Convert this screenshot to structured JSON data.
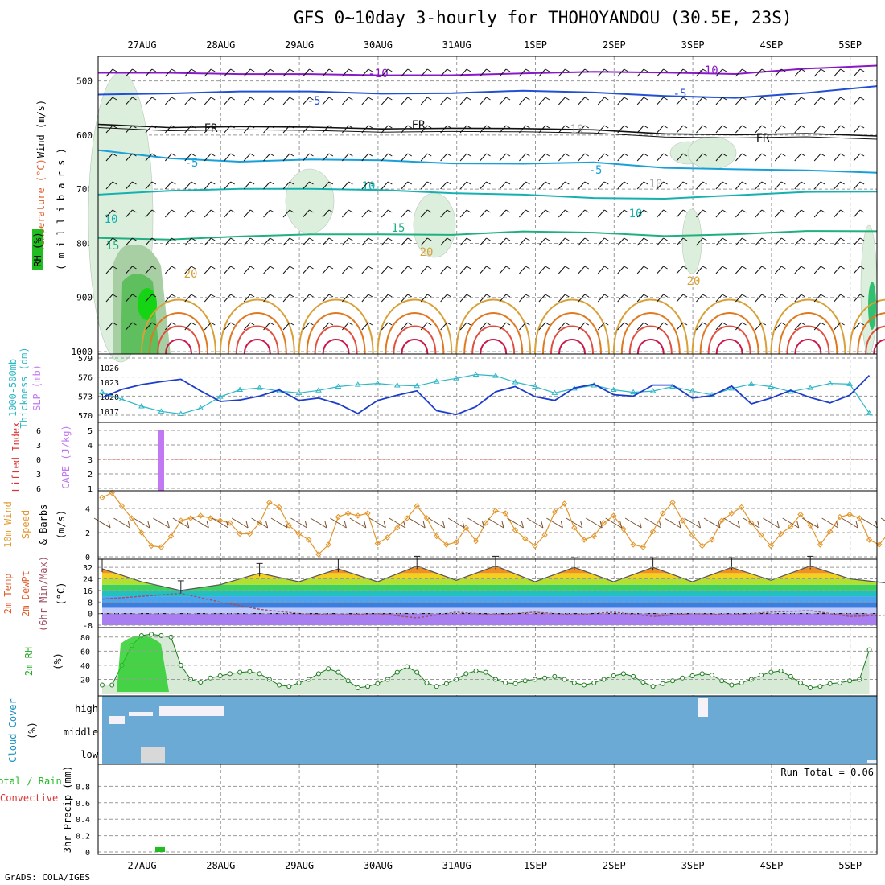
{
  "title": "GFS 0~10day 3-hourly for THOHOYANDOU (30.5E, 23S)",
  "credit": "GrADS: COLA/IGES",
  "colors": {
    "temperature": "#e06030",
    "rh": "#22aa22",
    "wind": "#000000",
    "thickness": "#2fb7c7",
    "slp": "#1c3ccc",
    "cape": "#c278f2",
    "lifted_index": "#dd3333",
    "wind10_speed": "#e3962c",
    "wind10_barb": "#7a5030",
    "cloud": "#6aaad4",
    "cloud_gap": "#f4f2f8",
    "precip_total": "#22bb22",
    "precip_conv": "#dd3333"
  },
  "x_axis": {
    "top_labels": [
      "27AUG",
      "28AUG",
      "29AUG",
      "30AUG",
      "31AUG",
      "1SEP",
      "2SEP",
      "3SEP",
      "4SEP",
      "5SEP"
    ],
    "bottom_labels": [
      "27AUG",
      "28AUG",
      "29AUG",
      "30AUG",
      "31AUG",
      "1SEP",
      "2SEP",
      "3SEP",
      "4SEP",
      "5SEP"
    ]
  },
  "panels": {
    "upper": {
      "y_labels": [
        "Wind (m/s)",
        "Temperature (°C)",
        "RH (%)",
        "( m i l l i b a r s )"
      ],
      "pressure_ticks": [
        "500",
        "600",
        "700",
        "800",
        "900",
        "1000"
      ],
      "contour_labels": [
        "-10",
        "-10",
        "-5",
        "-5",
        "FR",
        "FR",
        "FR",
        "-5",
        "-5",
        "10",
        "10",
        "10",
        "15",
        "15",
        "20",
        "20",
        "20",
        "10",
        "10"
      ]
    },
    "thick": {
      "y_labels": [
        "1000-500mb",
        "Thickness (dm)",
        "SLP (mb)"
      ],
      "left_ticks": [
        "579",
        "576",
        "573",
        "570"
      ],
      "right_ticks": [
        "1026",
        "1023",
        "1020",
        "1017"
      ]
    },
    "cape": {
      "y_labels": [
        "Lifted Index",
        "CAPE (J/kg)"
      ],
      "li_ticks": [
        "6",
        "3",
        "0",
        "3",
        "6"
      ],
      "cape_ticks": [
        "5",
        "4",
        "3",
        "2",
        "1"
      ]
    },
    "wind10": {
      "y_labels": [
        "10m Wind",
        "Speed",
        "& Barbs",
        "(m/s)"
      ],
      "ticks": [
        "4",
        "2",
        "0"
      ]
    },
    "temp2m": {
      "y_labels": [
        "2m Temp",
        "2m DewPt",
        "(6hr Min/Max)",
        "(°C)"
      ],
      "ticks": [
        "32",
        "24",
        "16",
        "8",
        "0",
        "-8"
      ]
    },
    "rh2m": {
      "y_labels": [
        "2m RH",
        "(%)"
      ],
      "ticks": [
        "80",
        "60",
        "40",
        "20"
      ]
    },
    "cloud": {
      "y_labels": [
        "Cloud Cover",
        "(%)"
      ],
      "levels": [
        "high",
        "middle",
        "low"
      ]
    },
    "precip": {
      "y_labels": [
        "Total / Rain",
        "Convective",
        "3hr Precip (mm)"
      ],
      "ticks": [
        "0.8",
        "0.6",
        "0.4",
        "0.2",
        "0"
      ],
      "run_total": "Run Total = 0.06"
    }
  },
  "chart_data": [
    {
      "type": "line",
      "name": "upper-air time section",
      "x": [
        "26AUG 12Z",
        "27AUG 00Z",
        "28AUG 00Z",
        "29AUG 00Z",
        "30AUG 00Z",
        "31AUG 00Z",
        "1SEP 00Z",
        "2SEP 00Z",
        "3SEP 00Z",
        "4SEP 00Z",
        "5SEP 00Z",
        "5SEP 06Z"
      ],
      "ylim": [
        1000,
        450
      ],
      "series": [
        {
          "name": "-10",
          "values": [
            485,
            482,
            488,
            490,
            488,
            487,
            488,
            485,
            482,
            486,
            480,
            472
          ]
        },
        {
          "name": "-5",
          "values": [
            525,
            520,
            520,
            522,
            522,
            520,
            520,
            523,
            525,
            530,
            525,
            510
          ]
        },
        {
          "name": "FR",
          "values": [
            580,
            583,
            585,
            588,
            587,
            585,
            590,
            592,
            595,
            598,
            600,
            602
          ]
        },
        {
          "name": "5",
          "values": [
            628,
            640,
            650,
            648,
            645,
            650,
            655,
            652,
            658,
            662,
            668,
            670
          ]
        },
        {
          "name": "10",
          "values": [
            710,
            700,
            700,
            702,
            700,
            705,
            712,
            718,
            715,
            710,
            708,
            705
          ]
        },
        {
          "name": "15",
          "values": [
            790,
            790,
            788,
            786,
            782,
            782,
            780,
            782,
            784,
            782,
            780,
            778
          ]
        }
      ]
    },
    {
      "type": "line",
      "name": "1000-500mb thickness and SLP",
      "x": [
        "26AUG 12Z",
        "26AUG 18Z",
        "27AUG 00Z",
        "27AUG 06Z",
        "27AUG 12Z",
        "27AUG 18Z",
        "28AUG 00Z",
        "28AUG 06Z",
        "28AUG 12Z",
        "28AUG 18Z",
        "29AUG 00Z",
        "29AUG 06Z",
        "29AUG 12Z",
        "29AUG 18Z",
        "30AUG 00Z",
        "30AUG 06Z",
        "30AUG 12Z",
        "30AUG 18Z",
        "31AUG 00Z",
        "31AUG 06Z",
        "31AUG 12Z",
        "31AUG 18Z",
        "1SEP 00Z",
        "1SEP 06Z",
        "1SEP 12Z",
        "1SEP 18Z",
        "2SEP 00Z",
        "2SEP 06Z",
        "2SEP 12Z",
        "2SEP 18Z",
        "3SEP 00Z",
        "3SEP 06Z",
        "3SEP 12Z",
        "3SEP 18Z",
        "4SEP 00Z",
        "4SEP 06Z",
        "4SEP 12Z",
        "4SEP 18Z",
        "5SEP 00Z",
        "5SEP 06Z"
      ],
      "series": [
        {
          "name": "thickness",
          "values": [
            573.6,
            572.5,
            571.4,
            570.6,
            570.2,
            571.1,
            572.9,
            574.0,
            574.3,
            573.8,
            573.5,
            573.9,
            574.5,
            574.8,
            575.0,
            574.7,
            574.6,
            575.3,
            575.8,
            576.4,
            576.2,
            575.2,
            574.5,
            573.5,
            574.2,
            574.7,
            574.0,
            573.6,
            573.8,
            574.5,
            573.8,
            573.2,
            574.2,
            574.9,
            574.5,
            573.7,
            574.3,
            575.0,
            574.9,
            570.3
          ]
        },
        {
          "name": "SLP",
          "values": [
            1019.8,
            1021.5,
            1022.5,
            1023.1,
            1023.6,
            1021.2,
            1019.0,
            1019.3,
            1020.1,
            1021.4,
            1019.2,
            1019.7,
            1018.5,
            1016.5,
            1019.2,
            1020.3,
            1021.2,
            1017.1,
            1016.3,
            1017.9,
            1021.0,
            1022.1,
            1020.0,
            1019.2,
            1021.8,
            1022.6,
            1020.4,
            1020.1,
            1022.4,
            1022.4,
            1019.7,
            1020.2,
            1022.2,
            1018.5,
            1019.7,
            1021.3,
            1019.8,
            1018.7,
            1020.3,
            1024.4
          ]
        }
      ]
    },
    {
      "type": "bar",
      "name": "CAPE / Lifted Index",
      "x": [
        "27AUG 06Z"
      ],
      "series": [
        {
          "name": "CAPE",
          "values": [
            5
          ]
        }
      ],
      "ylim": [
        1,
        5
      ],
      "li_zero_line": 0
    },
    {
      "type": "line",
      "name": "10m wind speed",
      "x": "3-hourly 26AUG 12Z to 5SEP 06Z",
      "series": [
        {
          "name": "speed",
          "values": [
            4.9,
            5.3,
            4.2,
            3.2,
            2.0,
            0.9,
            0.8,
            1.7,
            3.0,
            3.2,
            3.4,
            3.2,
            3.0,
            2.8,
            1.9,
            1.9,
            2.8,
            4.5,
            4.1,
            2.6,
            1.9,
            1.4,
            0.2,
            1.0,
            3.3,
            3.6,
            3.4,
            3.6,
            1.1,
            1.6,
            2.4,
            3.2,
            4.2,
            3.2,
            1.7,
            1.0,
            1.2,
            2.4,
            1.3,
            2.8,
            3.8,
            3.6,
            2.2,
            1.5,
            0.9,
            1.8,
            3.7,
            4.4,
            2.4,
            1.4,
            1.7,
            2.8,
            3.4,
            2.3,
            1.0,
            0.8,
            2.1,
            3.6,
            4.5,
            3.0,
            1.8,
            0.9,
            1.4,
            3.0,
            3.6,
            4.1,
            2.8,
            1.8,
            0.9,
            1.9,
            2.5,
            3.5,
            2.6,
            1.0,
            2.1,
            3.3,
            3.5,
            3.2,
            1.4,
            1.0,
            2.0
          ]
        }
      ],
      "ylim": [
        0,
        5
      ]
    },
    {
      "type": "area",
      "name": "2m temperature and dewpoint",
      "x": [
        "26AUG 12Z",
        "27AUG 00Z",
        "27AUG 12Z",
        "28AUG 00Z",
        "28AUG 12Z",
        "29AUG 00Z",
        "29AUG 12Z",
        "30AUG 00Z",
        "30AUG 12Z",
        "31AUG 00Z",
        "31AUG 12Z",
        "1SEP 00Z",
        "1SEP 12Z",
        "2SEP 00Z",
        "2SEP 12Z",
        "3SEP 00Z",
        "3SEP 12Z",
        "4SEP 00Z",
        "4SEP 12Z",
        "5SEP 00Z",
        "5SEP 06Z"
      ],
      "series": [
        {
          "name": "temperature",
          "values": [
            31,
            22,
            16,
            20,
            28,
            22,
            31,
            22,
            33,
            23,
            33,
            22,
            32,
            22,
            32,
            22,
            32,
            23,
            33,
            24,
            21
          ]
        },
        {
          "name": "dewpoint",
          "values": [
            10,
            12,
            14,
            8,
            3,
            0,
            -1,
            0,
            -3,
            1,
            -1,
            1,
            -1,
            1,
            -2,
            0,
            -1,
            1,
            2,
            -2,
            -1
          ]
        }
      ],
      "ylim": [
        -8,
        36
      ]
    },
    {
      "type": "area",
      "name": "2m relative humidity",
      "x": "3-hourly 26AUG 12Z to 5SEP 06Z",
      "series": [
        {
          "name": "RH",
          "values": [
            12,
            12,
            40,
            68,
            82,
            84,
            82,
            80,
            40,
            20,
            16,
            22,
            25,
            28,
            30,
            31,
            28,
            20,
            12,
            10,
            15,
            20,
            28,
            35,
            30,
            18,
            8,
            10,
            14,
            20,
            30,
            38,
            30,
            15,
            10,
            14,
            20,
            28,
            32,
            30,
            20,
            15,
            14,
            18,
            20,
            22,
            24,
            20,
            15,
            12,
            15,
            20,
            25,
            28,
            24,
            16,
            10,
            14,
            18,
            22,
            25,
            28,
            26,
            18,
            12,
            15,
            20,
            26,
            30,
            32,
            24,
            15,
            8,
            10,
            14,
            15,
            18,
            20,
            62
          ]
        }
      ],
      "ylim": [
        0,
        90
      ]
    },
    {
      "type": "bar",
      "name": "cloud cover",
      "series": [
        {
          "name": "high",
          "values": "mostly 100 with gaps near 26AUG-28AUG and 3SEP"
        },
        {
          "name": "middle",
          "values": "100"
        },
        {
          "name": "low",
          "values": "100 with gap on 27AUG"
        }
      ]
    },
    {
      "type": "bar",
      "name": "3hr precipitation",
      "x": [
        "27AUG 06Z"
      ],
      "series": [
        {
          "name": "total",
          "values": [
            0.06
          ]
        }
      ],
      "ylim": [
        0,
        1.0
      ]
    }
  ]
}
